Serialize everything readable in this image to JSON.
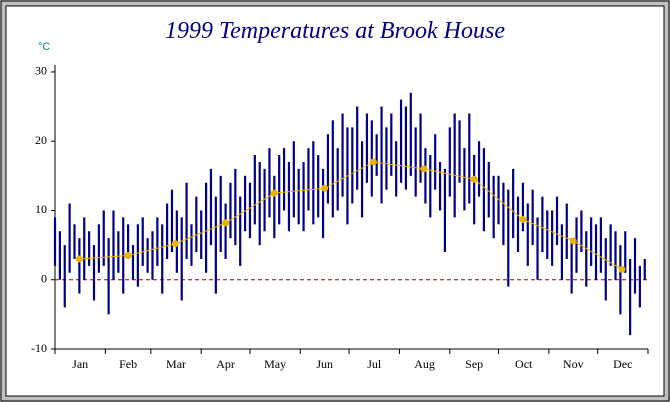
{
  "chart_data": {
    "type": "range",
    "title": "1999 Temperatures at Brook House",
    "y_label": "°C",
    "categories": [
      "Jan",
      "Feb",
      "Mar",
      "Apr",
      "May",
      "Jun",
      "Jul",
      "Aug",
      "Sep",
      "Oct",
      "Nov",
      "Dec"
    ],
    "xlim": [
      1,
      366
    ],
    "xticks": [
      1,
      32,
      60,
      91,
      121,
      152,
      182,
      213,
      244,
      274,
      305,
      335,
      366
    ],
    "ylim": [
      -10,
      31
    ],
    "yticks": [
      -10,
      0,
      10,
      20,
      30
    ],
    "reference_line": 0,
    "bar_color": "#000080",
    "x": [
      1,
      4,
      7,
      10,
      13,
      16,
      19,
      22,
      25,
      28,
      31,
      34,
      37,
      40,
      43,
      46,
      49,
      52,
      55,
      58,
      61,
      64,
      67,
      70,
      73,
      76,
      79,
      82,
      85,
      88,
      91,
      94,
      97,
      100,
      103,
      106,
      109,
      112,
      115,
      118,
      121,
      124,
      127,
      130,
      133,
      136,
      139,
      142,
      145,
      148,
      151,
      154,
      157,
      160,
      163,
      166,
      169,
      172,
      175,
      178,
      181,
      184,
      187,
      190,
      193,
      196,
      199,
      202,
      205,
      208,
      211,
      214,
      217,
      220,
      223,
      226,
      229,
      232,
      235,
      238,
      241,
      244,
      247,
      250,
      253,
      256,
      259,
      262,
      265,
      268,
      271,
      274,
      277,
      280,
      283,
      286,
      289,
      292,
      295,
      298,
      301,
      304,
      307,
      310,
      313,
      316,
      319,
      322,
      325,
      328,
      331,
      334,
      337,
      340,
      343,
      346,
      349,
      352,
      355,
      358,
      361,
      364
    ],
    "low": [
      2,
      0,
      -4,
      1,
      3,
      -2,
      0,
      2,
      -3,
      1,
      2,
      -5,
      0,
      1,
      -2,
      3,
      0,
      -1,
      2,
      1,
      0,
      2,
      -2,
      3,
      4,
      1,
      -3,
      3,
      2,
      4,
      3,
      1,
      5,
      -2,
      4,
      3,
      6,
      5,
      2,
      7,
      6,
      8,
      5,
      7,
      9,
      6,
      8,
      10,
      7,
      9,
      8,
      7,
      10,
      8,
      9,
      6,
      11,
      9,
      10,
      12,
      8,
      11,
      13,
      9,
      14,
      12,
      15,
      11,
      13,
      15,
      12,
      14,
      13,
      15,
      12,
      14,
      11,
      9,
      13,
      10,
      4,
      12,
      9,
      14,
      10,
      11,
      8,
      12,
      7,
      9,
      6,
      8,
      5,
      -1,
      6,
      4,
      7,
      2,
      5,
      0,
      4,
      3,
      2,
      5,
      0,
      3,
      -2,
      1,
      4,
      -1,
      2,
      0,
      1,
      -3,
      2,
      0,
      -5,
      1,
      -8,
      -2,
      -4,
      0
    ],
    "high": [
      9,
      7,
      5,
      11,
      8,
      6,
      9,
      7,
      5,
      8,
      10,
      6,
      10,
      7,
      9,
      8,
      5,
      8,
      9,
      6,
      7,
      9,
      8,
      11,
      13,
      10,
      9,
      14,
      8,
      12,
      10,
      14,
      16,
      12,
      15,
      11,
      14,
      16,
      12,
      15,
      14,
      18,
      17,
      16,
      19,
      15,
      18,
      19,
      17,
      20,
      16,
      17,
      19,
      20,
      18,
      16,
      21,
      23,
      19,
      24,
      22,
      22,
      25,
      20,
      24,
      23,
      21,
      25,
      22,
      24,
      20,
      26,
      25,
      27,
      22,
      24,
      19,
      18,
      21,
      17,
      16,
      22,
      24,
      23,
      19,
      24,
      18,
      20,
      19,
      17,
      15,
      15,
      14,
      13,
      16,
      12,
      14,
      11,
      13,
      9,
      12,
      10,
      10,
      12,
      8,
      11,
      6,
      9,
      10,
      7,
      9,
      8,
      9,
      6,
      8,
      7,
      5,
      7,
      3,
      6,
      2,
      3
    ],
    "mean": {
      "color": "#e8b400",
      "x": [
        16,
        46,
        75,
        106,
        136,
        167,
        197,
        228,
        259,
        289,
        320,
        350
      ],
      "values": [
        3,
        3.5,
        5.2,
        8.2,
        12.5,
        13.2,
        17,
        16,
        14.5,
        8.7,
        5.6,
        1.5
      ]
    }
  }
}
